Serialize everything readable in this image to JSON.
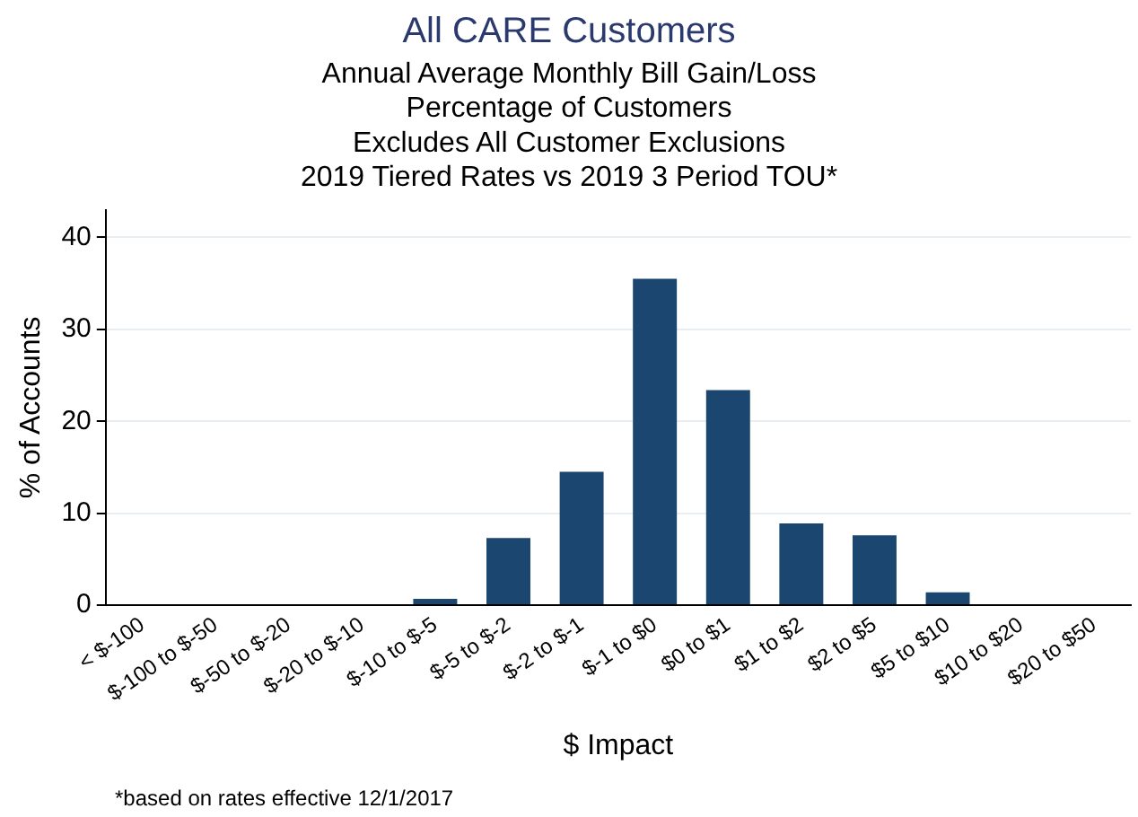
{
  "chart_data": {
    "type": "bar",
    "title": "All CARE Customers",
    "subtitle": "Annual Average Monthly Bill Gain/Loss\nPercentage of Customers\nExcludes All Customer Exclusions\n2019 Tiered Rates vs 2019 3 Period TOU*",
    "xlabel": "$ Impact",
    "ylabel": "% of Accounts",
    "categories": [
      "< $-100",
      "$-100 to $-50",
      "$-50 to $-20",
      "$-20 to $-10",
      "$-10 to $-5",
      "$-5 to $-2",
      "$-2 to $-1",
      "$-1 to $0",
      "$0 to $1",
      "$1 to $2",
      "$2 to $5",
      "$5 to $10",
      "$10 to $20",
      "$20 to $50"
    ],
    "values": [
      0,
      0,
      0,
      0,
      0.7,
      7.3,
      14.5,
      35.5,
      23.4,
      8.9,
      7.6,
      1.4,
      0,
      0
    ],
    "color": "#1a4670",
    "ylim": [
      0,
      43
    ],
    "yticks": [
      0,
      10,
      20,
      30,
      40
    ],
    "grid": "y",
    "legend": false,
    "annotations": [
      "*based on rates effective 12/1/2017"
    ]
  }
}
